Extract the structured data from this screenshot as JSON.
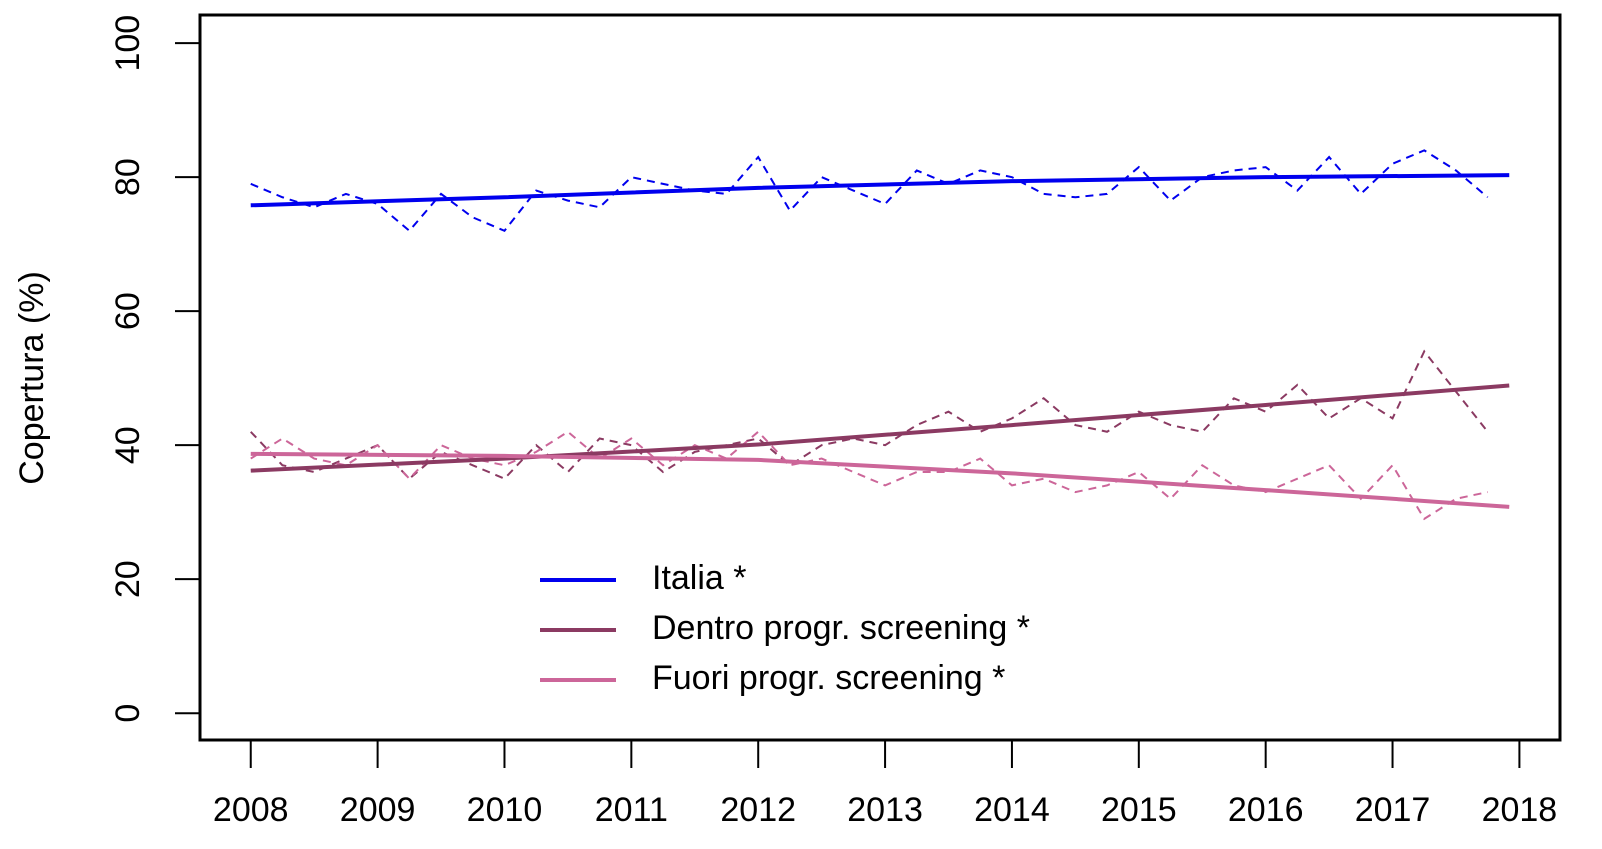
{
  "chart_data": {
    "type": "line",
    "y_label": "Copertura (%)",
    "xlim": [
      2007.6,
      2018.32
    ],
    "ylim": [
      -4,
      104.2
    ],
    "xticks": [
      2008,
      2009,
      2010,
      2011,
      2012,
      2013,
      2014,
      2015,
      2016,
      2017,
      2018
    ],
    "yticks": [
      0,
      20,
      40,
      60,
      80,
      100
    ],
    "series": [
      {
        "color": "#0000ee",
        "dashed": true,
        "x": [
          2008,
          2008.25,
          2008.5,
          2008.75,
          2009,
          2009.25,
          2009.5,
          2009.75,
          2010,
          2010.25,
          2010.5,
          2010.75,
          2011,
          2011.25,
          2011.5,
          2011.75,
          2012,
          2012.25,
          2012.5,
          2012.75,
          2013,
          2013.25,
          2013.5,
          2013.75,
          2014,
          2014.25,
          2014.5,
          2014.75,
          2015,
          2015.25,
          2015.5,
          2015.75,
          2016,
          2016.25,
          2016.5,
          2016.75,
          2017,
          2017.25,
          2017.5,
          2017.75
        ],
        "values": [
          79,
          77,
          75.5,
          77.5,
          76,
          72,
          77.5,
          74,
          72,
          78,
          76.5,
          75.5,
          80,
          79,
          78,
          77.5,
          83,
          75,
          80,
          78,
          76,
          81,
          79,
          81,
          80,
          77.5,
          77,
          77.5,
          81.5,
          76.5,
          80,
          81,
          81.5,
          78,
          83,
          77.5,
          82,
          84,
          81,
          77
        ]
      },
      {
        "color": "#8b3a62",
        "dashed": true,
        "x": [
          2008,
          2008.25,
          2008.5,
          2008.75,
          2009,
          2009.25,
          2009.5,
          2009.75,
          2010,
          2010.25,
          2010.5,
          2010.75,
          2011,
          2011.25,
          2011.5,
          2011.75,
          2012,
          2012.25,
          2012.5,
          2012.75,
          2013,
          2013.25,
          2013.5,
          2013.75,
          2014,
          2014.25,
          2014.5,
          2014.75,
          2015,
          2015.25,
          2015.5,
          2015.75,
          2016,
          2016.25,
          2016.5,
          2016.75,
          2017,
          2017.25,
          2017.5,
          2017.75
        ],
        "values": [
          42,
          37,
          36,
          38,
          40,
          35,
          39,
          37,
          35,
          40,
          36,
          41,
          40,
          36,
          39,
          40,
          41,
          37,
          40,
          41,
          40,
          43,
          45,
          42,
          44,
          47,
          43,
          42,
          45,
          43,
          42,
          47,
          45,
          49,
          44,
          47,
          44,
          54,
          48,
          42
        ]
      },
      {
        "color": "#cc6699",
        "dashed": true,
        "x": [
          2008,
          2008.25,
          2008.5,
          2008.75,
          2009,
          2009.25,
          2009.5,
          2009.75,
          2010,
          2010.25,
          2010.5,
          2010.75,
          2011,
          2011.25,
          2011.5,
          2011.75,
          2012,
          2012.25,
          2012.5,
          2012.75,
          2013,
          2013.25,
          2013.5,
          2013.75,
          2014,
          2014.25,
          2014.5,
          2014.75,
          2015,
          2015.25,
          2015.5,
          2015.75,
          2016,
          2016.25,
          2016.5,
          2016.75,
          2017,
          2017.25,
          2017.5,
          2017.75
        ],
        "values": [
          38,
          41,
          38,
          37,
          40,
          35,
          40,
          38,
          37,
          39,
          42,
          38,
          41,
          37,
          40,
          38,
          42,
          37,
          38,
          36,
          34,
          36,
          36,
          38,
          34,
          35,
          33,
          34,
          36,
          32,
          37,
          34,
          33,
          35,
          37,
          32,
          37,
          29,
          32,
          33
        ]
      },
      {
        "name": "Italia *",
        "color": "#0000ee",
        "x": [
          2008,
          2010,
          2012,
          2014,
          2016,
          2017.92
        ],
        "values": [
          75.8,
          77,
          78.4,
          79.4,
          80,
          80.3
        ]
      },
      {
        "name": "Dentro progr. screening *",
        "color": "#8b3a62",
        "x": [
          2008,
          2010,
          2012,
          2014,
          2016,
          2017.92
        ],
        "values": [
          36.2,
          38,
          40.1,
          43,
          46,
          48.9
        ]
      },
      {
        "name": "Fuori progr. screening *",
        "color": "#cc6699",
        "x": [
          2008,
          2010,
          2012,
          2014,
          2016,
          2017.92
        ],
        "values": [
          38.7,
          38.4,
          37.8,
          35.8,
          33.3,
          30.8
        ]
      }
    ]
  }
}
